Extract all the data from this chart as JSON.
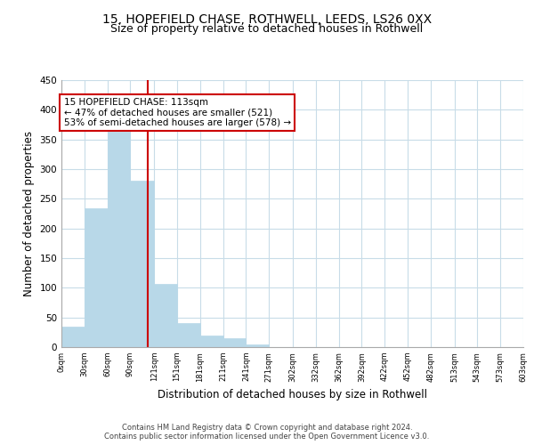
{
  "title": "15, HOPEFIELD CHASE, ROTHWELL, LEEDS, LS26 0XX",
  "subtitle": "Size of property relative to detached houses in Rothwell",
  "xlabel": "Distribution of detached houses by size in Rothwell",
  "ylabel": "Number of detached properties",
  "bar_edges": [
    0,
    30,
    60,
    90,
    121,
    151,
    181,
    211,
    241,
    271,
    302,
    332,
    362,
    392,
    422,
    452,
    482,
    513,
    543,
    573,
    603
  ],
  "bar_heights": [
    35,
    234,
    363,
    281,
    106,
    41,
    20,
    15,
    5,
    0,
    0,
    0,
    0,
    0,
    0,
    0,
    0,
    0,
    0,
    0
  ],
  "bar_color": "#b8d8e8",
  "bar_edge_color": "#b8d8e8",
  "property_line_x": 113,
  "property_line_color": "#cc0000",
  "annotation_text": "15 HOPEFIELD CHASE: 113sqm\n← 47% of detached houses are smaller (521)\n53% of semi-detached houses are larger (578) →",
  "annotation_box_color": "#ffffff",
  "annotation_box_edge_color": "#cc0000",
  "ylim": [
    0,
    450
  ],
  "tick_labels": [
    "0sqm",
    "30sqm",
    "60sqm",
    "90sqm",
    "121sqm",
    "151sqm",
    "181sqm",
    "211sqm",
    "241sqm",
    "271sqm",
    "302sqm",
    "332sqm",
    "362sqm",
    "392sqm",
    "422sqm",
    "452sqm",
    "482sqm",
    "513sqm",
    "543sqm",
    "573sqm",
    "603sqm"
  ],
  "background_color": "#ffffff",
  "grid_color": "#c8dce8",
  "footer_text": "Contains HM Land Registry data © Crown copyright and database right 2024.\nContains public sector information licensed under the Open Government Licence v3.0.",
  "title_fontsize": 10,
  "subtitle_fontsize": 9,
  "xlabel_fontsize": 8.5,
  "ylabel_fontsize": 8.5,
  "yticks": [
    0,
    50,
    100,
    150,
    200,
    250,
    300,
    350,
    400,
    450
  ]
}
